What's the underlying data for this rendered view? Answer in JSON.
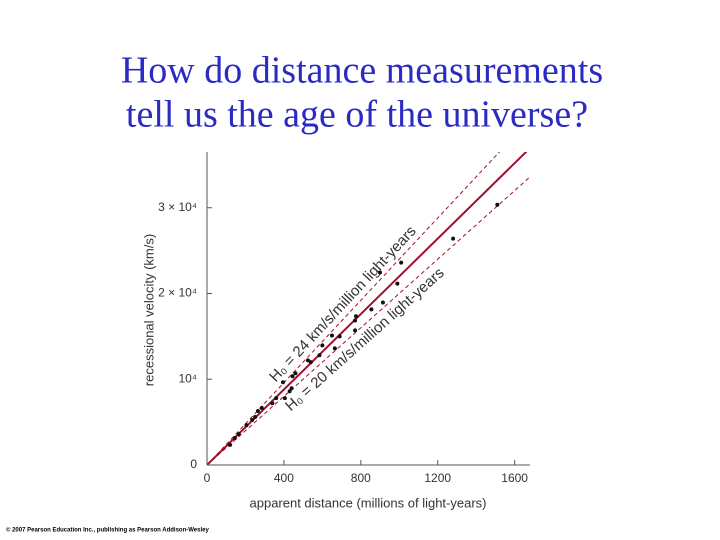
{
  "title": [
    "How do distance measurements",
    "tell us the age of the universe?"
  ],
  "copyright": "© 2007 Pearson Education Inc., publishing as Pearson Addison-Wesley",
  "chart_data": {
    "type": "scatter",
    "x_label": "apparent distance (millions of light-years)",
    "y_label": "recessional velocity (km/s)",
    "xlim": [
      0,
      1680
    ],
    "ylim": [
      0,
      36500
    ],
    "xticks": [
      0,
      400,
      800,
      1200,
      1600
    ],
    "yticks": [
      0,
      {
        "value": 10000,
        "label": "10⁴"
      },
      {
        "value": 20000,
        "label": "2 × 10⁴"
      },
      {
        "value": 30000,
        "label": "3 × 10⁴"
      }
    ],
    "point_color": "#111111",
    "x": [
      1510,
      1280,
      900,
      1010,
      990,
      915,
      855,
      775,
      770,
      770,
      690,
      650,
      665,
      600,
      585,
      540,
      525,
      460,
      445,
      440,
      395,
      430,
      405,
      360,
      340,
      285,
      265,
      250,
      235,
      205,
      165,
      145,
      120
    ],
    "y": [
      30350,
      26400,
      22450,
      23600,
      21150,
      18950,
      18150,
      17350,
      15700,
      16850,
      15000,
      15100,
      13600,
      13950,
      12800,
      12000,
      12200,
      10700,
      10350,
      8950,
      9650,
      8600,
      7800,
      7800,
      7200,
      6650,
      6300,
      5600,
      5250,
      4650,
      3600,
      3150,
      2350
    ],
    "lines": [
      {
        "slope": 22,
        "color": "#a0102a",
        "dashed": false
      },
      {
        "slope": 24,
        "color": "#a0102a",
        "dashed": true,
        "label": "H₀ = 24 km/s/million light-years"
      },
      {
        "slope": 20,
        "color": "#a0102a",
        "dashed": true,
        "label": "H₀ = 20 km/s/million light-years"
      }
    ]
  }
}
